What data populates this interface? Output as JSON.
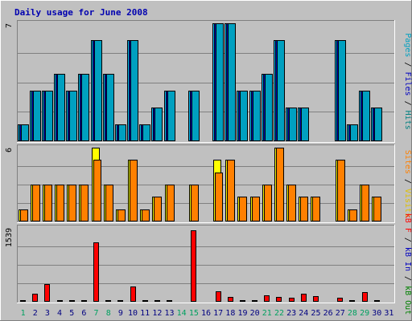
{
  "chart_data": {
    "type": "bar",
    "title": "Daily usage for June 2008",
    "categories": [
      "1",
      "2",
      "3",
      "4",
      "5",
      "6",
      "7",
      "8",
      "9",
      "10",
      "11",
      "12",
      "13",
      "14",
      "15",
      "16",
      "17",
      "18",
      "19",
      "20",
      "21",
      "22",
      "23",
      "24",
      "25",
      "26",
      "27",
      "28",
      "29",
      "30",
      "31"
    ],
    "weekend_days": [
      "1",
      "7",
      "8",
      "14",
      "15",
      "21",
      "22",
      "28",
      "29"
    ],
    "panels": [
      {
        "id": "top",
        "max_label": "7",
        "ylim": [
          0,
          7
        ],
        "series": [
          {
            "name": "Hits",
            "color": "#00c0ff",
            "values": [
              1,
              3,
              3,
              4,
              3,
              4,
              6,
              4,
              1,
              6,
              1,
              2,
              3,
              0,
              3,
              0,
              7,
              7,
              3,
              3,
              4,
              6,
              2,
              2,
              0,
              0,
              6,
              1,
              3,
              2,
              0
            ]
          },
          {
            "name": "Files",
            "color": "#0000c0",
            "values": [
              1,
              3,
              3,
              4,
              3,
              4,
              6,
              4,
              1,
              6,
              1,
              2,
              3,
              0,
              3,
              0,
              7,
              7,
              3,
              3,
              4,
              6,
              2,
              2,
              0,
              0,
              6,
              1,
              3,
              2,
              0
            ]
          },
          {
            "name": "Pages",
            "color": "#00a0c0",
            "values": [
              1,
              3,
              3,
              4,
              3,
              4,
              6,
              4,
              1,
              6,
              1,
              2,
              3,
              0,
              3,
              0,
              7,
              7,
              3,
              3,
              4,
              6,
              2,
              2,
              0,
              0,
              6,
              1,
              3,
              2,
              0
            ]
          }
        ],
        "legend": [
          {
            "text": "Pages",
            "color": "#00a0c0"
          },
          {
            "text": " / ",
            "color": "#000000"
          },
          {
            "text": "Files",
            "color": "#0000c0"
          },
          {
            "text": " / ",
            "color": "#000000"
          },
          {
            "text": "Hits",
            "color": "#008080"
          }
        ]
      },
      {
        "id": "middle",
        "max_label": "6",
        "ylim": [
          0,
          6
        ],
        "series": [
          {
            "name": "Visits",
            "color": "#ffff00",
            "values": [
              1,
              3,
              3,
              3,
              3,
              3,
              6,
              3,
              1,
              5,
              1,
              2,
              3,
              0,
              3,
              0,
              5,
              5,
              2,
              2,
              3,
              6,
              3,
              2,
              2,
              0,
              5,
              1,
              3,
              2,
              0
            ]
          },
          {
            "name": "Sites",
            "color": "#ff8000",
            "values": [
              1,
              3,
              3,
              3,
              3,
              3,
              5,
              3,
              1,
              5,
              1,
              2,
              3,
              0,
              3,
              0,
              4,
              5,
              2,
              2,
              3,
              6,
              3,
              2,
              2,
              0,
              5,
              1,
              3,
              2,
              0
            ]
          }
        ],
        "legend": [
          {
            "text": "Sites",
            "color": "#ff8000"
          },
          {
            "text": " / ",
            "color": "#000000"
          },
          {
            "text": "Visits",
            "color": "#e0c000"
          }
        ]
      },
      {
        "id": "bottom",
        "max_label": "1539",
        "ylim": [
          0,
          1539
        ],
        "series": [
          {
            "name": "kB F",
            "color": "#ff0000",
            "values": [
              30,
              170,
              360,
              30,
              30,
              30,
              1230,
              30,
              30,
              310,
              30,
              30,
              30,
              0,
              1490,
              0,
              220,
              100,
              30,
              30,
              140,
              100,
              80,
              160,
              110,
              0,
              90,
              30,
              200,
              30,
              0
            ]
          }
        ],
        "legend": [
          {
            "text": "kB F",
            "color": "#ff0000"
          },
          {
            "text": " / ",
            "color": "#000000"
          },
          {
            "text": "kB In",
            "color": "#0000c0"
          },
          {
            "text": " / ",
            "color": "#000000"
          },
          {
            "text": "kB Out",
            "color": "#008000"
          }
        ]
      }
    ]
  },
  "colors": {
    "background": "#c0c0c0",
    "title": "#0000b0",
    "weekday_label": "#000080",
    "weekend_label": "#00a060"
  }
}
